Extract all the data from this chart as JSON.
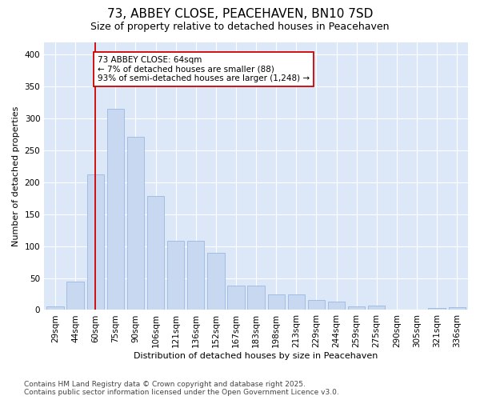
{
  "title": "73, ABBEY CLOSE, PEACEHAVEN, BN10 7SD",
  "subtitle": "Size of property relative to detached houses in Peacehaven",
  "xlabel": "Distribution of detached houses by size in Peacehaven",
  "ylabel": "Number of detached properties",
  "categories": [
    "29sqm",
    "44sqm",
    "60sqm",
    "75sqm",
    "90sqm",
    "106sqm",
    "121sqm",
    "136sqm",
    "152sqm",
    "167sqm",
    "183sqm",
    "198sqm",
    "213sqm",
    "229sqm",
    "244sqm",
    "259sqm",
    "275sqm",
    "290sqm",
    "305sqm",
    "321sqm",
    "336sqm"
  ],
  "values": [
    5,
    45,
    213,
    315,
    272,
    178,
    109,
    109,
    90,
    38,
    38,
    24,
    25,
    16,
    13,
    5,
    7,
    0,
    0,
    3,
    4
  ],
  "bar_color": "#c8d8f0",
  "bar_edge_color": "#9ab8e0",
  "vline_x": 2.0,
  "vline_color": "#cc0000",
  "annotation_text": "73 ABBEY CLOSE: 64sqm\n← 7% of detached houses are smaller (88)\n93% of semi-detached houses are larger (1,248) →",
  "annotation_box_color": "white",
  "annotation_box_edge": "#cc0000",
  "ylim": [
    0,
    420
  ],
  "yticks": [
    0,
    50,
    100,
    150,
    200,
    250,
    300,
    350,
    400
  ],
  "bg_color": "#ffffff",
  "plot_bg_color": "#dce8f8",
  "grid_color": "#ffffff",
  "footer": "Contains HM Land Registry data © Crown copyright and database right 2025.\nContains public sector information licensed under the Open Government Licence v3.0.",
  "title_fontsize": 11,
  "subtitle_fontsize": 9,
  "axis_label_fontsize": 8,
  "tick_fontsize": 7.5,
  "footer_fontsize": 6.5
}
